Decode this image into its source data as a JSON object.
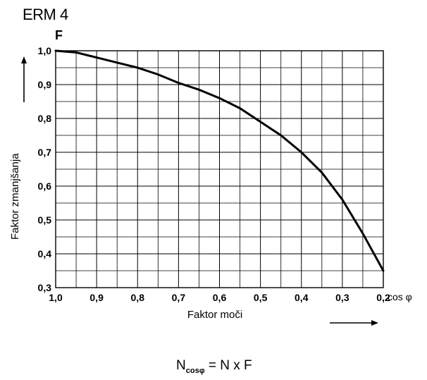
{
  "chart_data": {
    "type": "line",
    "title": "ERM 4",
    "ylabel_symbol": "F",
    "ylabel": "Faktor zmanjšanja",
    "xlabel": "Faktor moči",
    "xlabel_symbol": "cos φ",
    "xlim": [
      1.0,
      0.2
    ],
    "ylim": [
      0.3,
      1.0
    ],
    "x_reversed": true,
    "grid": true,
    "x_ticks": [
      1.0,
      0.9,
      0.8,
      0.7,
      0.6,
      0.5,
      0.4,
      0.3,
      0.2
    ],
    "x_tick_labels": [
      "1,0",
      "0,9",
      "0,8",
      "0,7",
      "0,6",
      "0,5",
      "0,4",
      "0,3",
      "0,2"
    ],
    "y_ticks": [
      1.0,
      0.9,
      0.8,
      0.7,
      0.6,
      0.5,
      0.4,
      0.3
    ],
    "y_tick_labels": [
      "1,0",
      "0,9",
      "0,8",
      "0,7",
      "0,6",
      "0,5",
      "0,4",
      "0,3"
    ],
    "series": [
      {
        "x": [
          1.0,
          0.95,
          0.9,
          0.85,
          0.8,
          0.75,
          0.7,
          0.65,
          0.6,
          0.55,
          0.5,
          0.45,
          0.4,
          0.35,
          0.3,
          0.25,
          0.2
        ],
        "y": [
          1.0,
          0.995,
          0.98,
          0.965,
          0.95,
          0.93,
          0.905,
          0.885,
          0.86,
          0.83,
          0.79,
          0.75,
          0.7,
          0.64,
          0.56,
          0.46,
          0.35
        ]
      }
    ]
  },
  "formula": {
    "lhs": "N",
    "lhs_sub": "cosφ",
    "rhs": "= N x F"
  }
}
